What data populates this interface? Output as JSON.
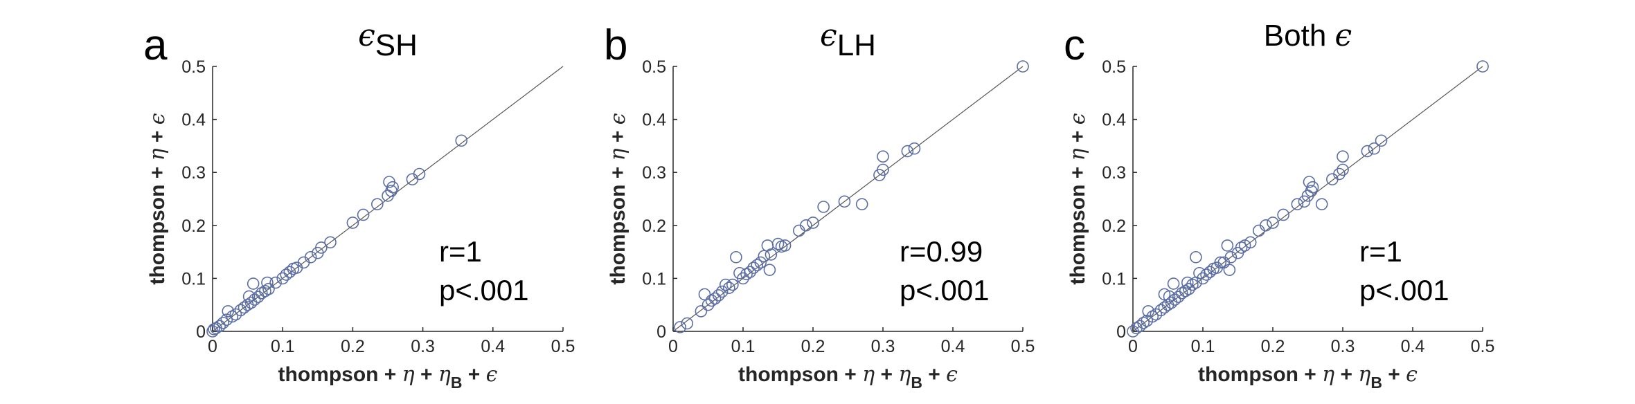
{
  "chart_data": [
    {
      "type": "scatter",
      "panel_letter": "a",
      "title": {
        "symbol": "ϵ",
        "subscript": "SH"
      },
      "xlabel": {
        "text": "thompson + ",
        "g1": "η",
        "mid": " + ",
        "g2": "η",
        "sub": "B",
        "end": " + ",
        "g3": "ϵ"
      },
      "ylabel": {
        "text": "thompson + ",
        "g1": "η",
        "mid": " + ",
        "g2": "ϵ"
      },
      "xlim": [
        0,
        0.5
      ],
      "ylim": [
        0,
        0.5
      ],
      "xticks": [
        "0",
        "0.1",
        "0.2",
        "0.3",
        "0.4",
        "0.5"
      ],
      "yticks": [
        "0",
        "0.1",
        "0.2",
        "0.3",
        "0.4",
        "0.5"
      ],
      "reference_line": "y=x",
      "annotations": [
        "r=1",
        "p<.001"
      ],
      "points": [
        [
          0,
          0
        ],
        [
          0.002,
          0.004
        ],
        [
          0.005,
          0.006
        ],
        [
          0.01,
          0.01
        ],
        [
          0.015,
          0.016
        ],
        [
          0.02,
          0.022
        ],
        [
          0.022,
          0.038
        ],
        [
          0.028,
          0.028
        ],
        [
          0.033,
          0.032
        ],
        [
          0.04,
          0.04
        ],
        [
          0.045,
          0.045
        ],
        [
          0.05,
          0.05
        ],
        [
          0.052,
          0.066
        ],
        [
          0.055,
          0.054
        ],
        [
          0.06,
          0.06
        ],
        [
          0.058,
          0.09
        ],
        [
          0.065,
          0.065
        ],
        [
          0.07,
          0.072
        ],
        [
          0.075,
          0.076
        ],
        [
          0.08,
          0.08
        ],
        [
          0.078,
          0.092
        ],
        [
          0.09,
          0.092
        ],
        [
          0.1,
          0.1
        ],
        [
          0.105,
          0.107
        ],
        [
          0.11,
          0.112
        ],
        [
          0.115,
          0.118
        ],
        [
          0.12,
          0.12
        ],
        [
          0.13,
          0.13
        ],
        [
          0.14,
          0.14
        ],
        [
          0.15,
          0.148
        ],
        [
          0.155,
          0.158
        ],
        [
          0.168,
          0.168
        ],
        [
          0.2,
          0.205
        ],
        [
          0.215,
          0.22
        ],
        [
          0.235,
          0.24
        ],
        [
          0.25,
          0.256
        ],
        [
          0.252,
          0.282
        ],
        [
          0.255,
          0.265
        ],
        [
          0.257,
          0.272
        ],
        [
          0.285,
          0.287
        ],
        [
          0.295,
          0.297
        ],
        [
          0.355,
          0.36
        ]
      ]
    },
    {
      "type": "scatter",
      "panel_letter": "b",
      "title": {
        "symbol": "ϵ",
        "subscript": "LH"
      },
      "xlabel": {
        "text": "thompson + ",
        "g1": "η",
        "mid": " + ",
        "g2": "η",
        "sub": "B",
        "end": " + ",
        "g3": "ϵ"
      },
      "ylabel": {
        "text": "thompson + ",
        "g1": "η",
        "mid": " + ",
        "g2": "ϵ"
      },
      "xlim": [
        0,
        0.5
      ],
      "ylim": [
        0,
        0.5
      ],
      "xticks": [
        "0",
        "0.1",
        "0.2",
        "0.3",
        "0.4",
        "0.5"
      ],
      "yticks": [
        "0",
        "0.1",
        "0.2",
        "0.3",
        "0.4",
        "0.5"
      ],
      "reference_line": "y=x",
      "annotations": [
        "r=0.99",
        "p<.001"
      ],
      "points": [
        [
          0.01,
          0.008
        ],
        [
          0.02,
          0.015
        ],
        [
          0.04,
          0.038
        ],
        [
          0.045,
          0.07
        ],
        [
          0.05,
          0.05
        ],
        [
          0.055,
          0.058
        ],
        [
          0.06,
          0.062
        ],
        [
          0.065,
          0.068
        ],
        [
          0.07,
          0.075
        ],
        [
          0.075,
          0.088
        ],
        [
          0.08,
          0.082
        ],
        [
          0.085,
          0.088
        ],
        [
          0.09,
          0.14
        ],
        [
          0.095,
          0.11
        ],
        [
          0.1,
          0.1
        ],
        [
          0.105,
          0.108
        ],
        [
          0.11,
          0.112
        ],
        [
          0.115,
          0.12
        ],
        [
          0.12,
          0.125
        ],
        [
          0.125,
          0.13
        ],
        [
          0.13,
          0.142
        ],
        [
          0.135,
          0.162
        ],
        [
          0.138,
          0.116
        ],
        [
          0.14,
          0.145
        ],
        [
          0.15,
          0.165
        ],
        [
          0.155,
          0.16
        ],
        [
          0.16,
          0.162
        ],
        [
          0.18,
          0.19
        ],
        [
          0.19,
          0.2
        ],
        [
          0.2,
          0.205
        ],
        [
          0.215,
          0.235
        ],
        [
          0.245,
          0.245
        ],
        [
          0.27,
          0.24
        ],
        [
          0.295,
          0.295
        ],
        [
          0.3,
          0.305
        ],
        [
          0.3,
          0.33
        ],
        [
          0.335,
          0.34
        ],
        [
          0.345,
          0.345
        ],
        [
          0.5,
          0.5
        ]
      ]
    },
    {
      "type": "scatter",
      "panel_letter": "c",
      "title": {
        "prefix": "Both ",
        "symbol": "ϵ",
        "subscript": ""
      },
      "xlabel": {
        "text": "thompson + ",
        "g1": "η",
        "mid": " + ",
        "g2": "η",
        "sub": "B",
        "end": " + ",
        "g3": "ϵ"
      },
      "ylabel": {
        "text": "thompson + ",
        "g1": "η",
        "mid": " + ",
        "g2": "ϵ"
      },
      "xlim": [
        0,
        0.5
      ],
      "ylim": [
        0,
        0.5
      ],
      "xticks": [
        "0",
        "0.1",
        "0.2",
        "0.3",
        "0.4",
        "0.5"
      ],
      "yticks": [
        "0",
        "0.1",
        "0.2",
        "0.3",
        "0.4",
        "0.5"
      ],
      "reference_line": "y=x",
      "annotations": [
        "r=1",
        "p<.001"
      ],
      "points": [
        [
          0,
          0
        ],
        [
          0.005,
          0.006
        ],
        [
          0.01,
          0.01
        ],
        [
          0.015,
          0.016
        ],
        [
          0.02,
          0.02
        ],
        [
          0.022,
          0.038
        ],
        [
          0.028,
          0.028
        ],
        [
          0.033,
          0.032
        ],
        [
          0.04,
          0.04
        ],
        [
          0.045,
          0.045
        ],
        [
          0.045,
          0.07
        ],
        [
          0.05,
          0.05
        ],
        [
          0.052,
          0.066
        ],
        [
          0.055,
          0.054
        ],
        [
          0.058,
          0.09
        ],
        [
          0.06,
          0.06
        ],
        [
          0.065,
          0.065
        ],
        [
          0.07,
          0.072
        ],
        [
          0.075,
          0.076
        ],
        [
          0.078,
          0.092
        ],
        [
          0.08,
          0.08
        ],
        [
          0.085,
          0.088
        ],
        [
          0.09,
          0.092
        ],
        [
          0.09,
          0.14
        ],
        [
          0.095,
          0.11
        ],
        [
          0.1,
          0.1
        ],
        [
          0.105,
          0.107
        ],
        [
          0.11,
          0.112
        ],
        [
          0.115,
          0.118
        ],
        [
          0.12,
          0.12
        ],
        [
          0.125,
          0.13
        ],
        [
          0.13,
          0.13
        ],
        [
          0.135,
          0.162
        ],
        [
          0.138,
          0.116
        ],
        [
          0.14,
          0.14
        ],
        [
          0.15,
          0.148
        ],
        [
          0.155,
          0.158
        ],
        [
          0.16,
          0.162
        ],
        [
          0.168,
          0.168
        ],
        [
          0.18,
          0.19
        ],
        [
          0.19,
          0.2
        ],
        [
          0.2,
          0.205
        ],
        [
          0.215,
          0.22
        ],
        [
          0.235,
          0.24
        ],
        [
          0.245,
          0.245
        ],
        [
          0.25,
          0.256
        ],
        [
          0.252,
          0.282
        ],
        [
          0.255,
          0.265
        ],
        [
          0.257,
          0.272
        ],
        [
          0.27,
          0.24
        ],
        [
          0.285,
          0.287
        ],
        [
          0.295,
          0.297
        ],
        [
          0.3,
          0.305
        ],
        [
          0.3,
          0.33
        ],
        [
          0.335,
          0.34
        ],
        [
          0.345,
          0.345
        ],
        [
          0.355,
          0.36
        ],
        [
          0.5,
          0.5
        ]
      ]
    }
  ]
}
